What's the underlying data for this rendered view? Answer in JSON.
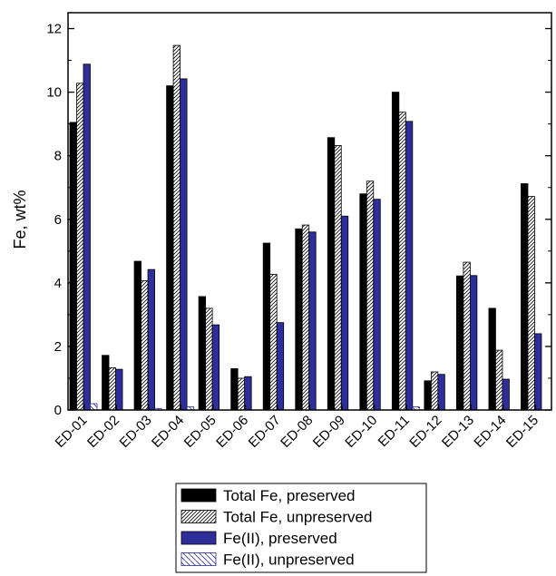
{
  "chart_data": {
    "type": "bar",
    "title": "",
    "xlabel": "",
    "ylabel": "Fe, wt%",
    "ylim": [
      0,
      12.5
    ],
    "yticks": [
      0,
      2,
      4,
      6,
      8,
      10,
      12
    ],
    "grid": false,
    "legend_position": "bottom",
    "categories": [
      "ED-01",
      "ED-02",
      "ED-03",
      "ED-04",
      "ED-05",
      "ED-06",
      "ED-07",
      "ED-08",
      "ED-09",
      "ED-10",
      "ED-11",
      "ED-12",
      "ED-13",
      "ED-14",
      "ED-15"
    ],
    "series": [
      {
        "name": "Total Fe, preserved",
        "fill": "#000000",
        "pattern": "solid",
        "values": [
          9.05,
          1.72,
          4.68,
          10.2,
          3.57,
          1.3,
          5.25,
          5.7,
          8.57,
          6.8,
          10.0,
          0.92,
          4.22,
          3.2,
          7.12
        ]
      },
      {
        "name": "Total Fe, unpreserved",
        "fill": "#ffffff",
        "pattern": "hatch-dense",
        "values": [
          10.28,
          1.33,
          4.07,
          11.47,
          3.2,
          1.0,
          4.27,
          5.82,
          8.32,
          7.2,
          9.37,
          1.2,
          4.65,
          1.88,
          6.72
        ]
      },
      {
        "name": "Fe(II), preserved",
        "fill": "#2e2e9a",
        "pattern": "solid",
        "values": [
          10.88,
          1.28,
          4.42,
          10.42,
          2.68,
          1.05,
          2.75,
          5.6,
          6.1,
          6.63,
          9.08,
          1.12,
          4.23,
          0.97,
          2.4
        ]
      },
      {
        "name": "Fe(II), unpreserved",
        "fill": "#ffffff",
        "pattern": "hatch-sparse",
        "values": [
          0.2,
          0.0,
          0.05,
          0.1,
          0.0,
          0.0,
          0.0,
          0.0,
          0.0,
          0.0,
          0.1,
          0.0,
          0.0,
          0.0,
          0.0
        ]
      }
    ]
  }
}
